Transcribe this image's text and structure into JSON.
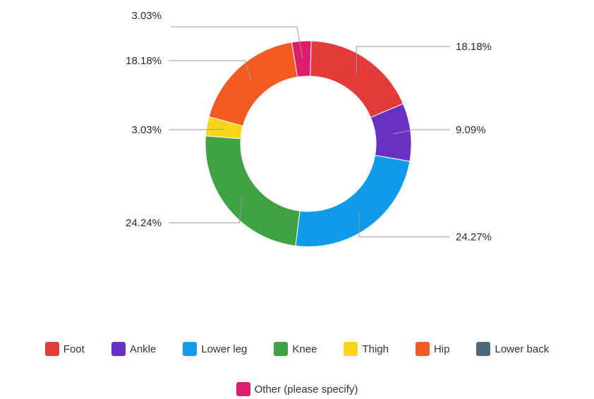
{
  "chart_data": {
    "type": "pie",
    "donut": true,
    "title": "",
    "slices": [
      {
        "label": "Foot",
        "value": 18.18,
        "display": "18.18%",
        "color": "#E33B3B"
      },
      {
        "label": "Ankle",
        "value": 9.09,
        "display": "9.09%",
        "color": "#6A30C4"
      },
      {
        "label": "Lower leg",
        "value": 24.27,
        "display": "24.27%",
        "color": "#0E9BE8"
      },
      {
        "label": "Knee",
        "value": 24.24,
        "display": "24.24%",
        "color": "#41A244"
      },
      {
        "label": "Thigh",
        "value": 3.03,
        "display": "3.03%",
        "color": "#F8D41B"
      },
      {
        "label": "Hip",
        "value": 18.18,
        "display": "18.18%",
        "color": "#F45A22"
      },
      {
        "label": "Lower back",
        "value": 0,
        "display": "",
        "color": "#4E6878"
      },
      {
        "label": "Other (please specify)",
        "value": 3.03,
        "display": "3.03%",
        "color": "#DD1D6B"
      }
    ],
    "legend_position": "bottom"
  }
}
